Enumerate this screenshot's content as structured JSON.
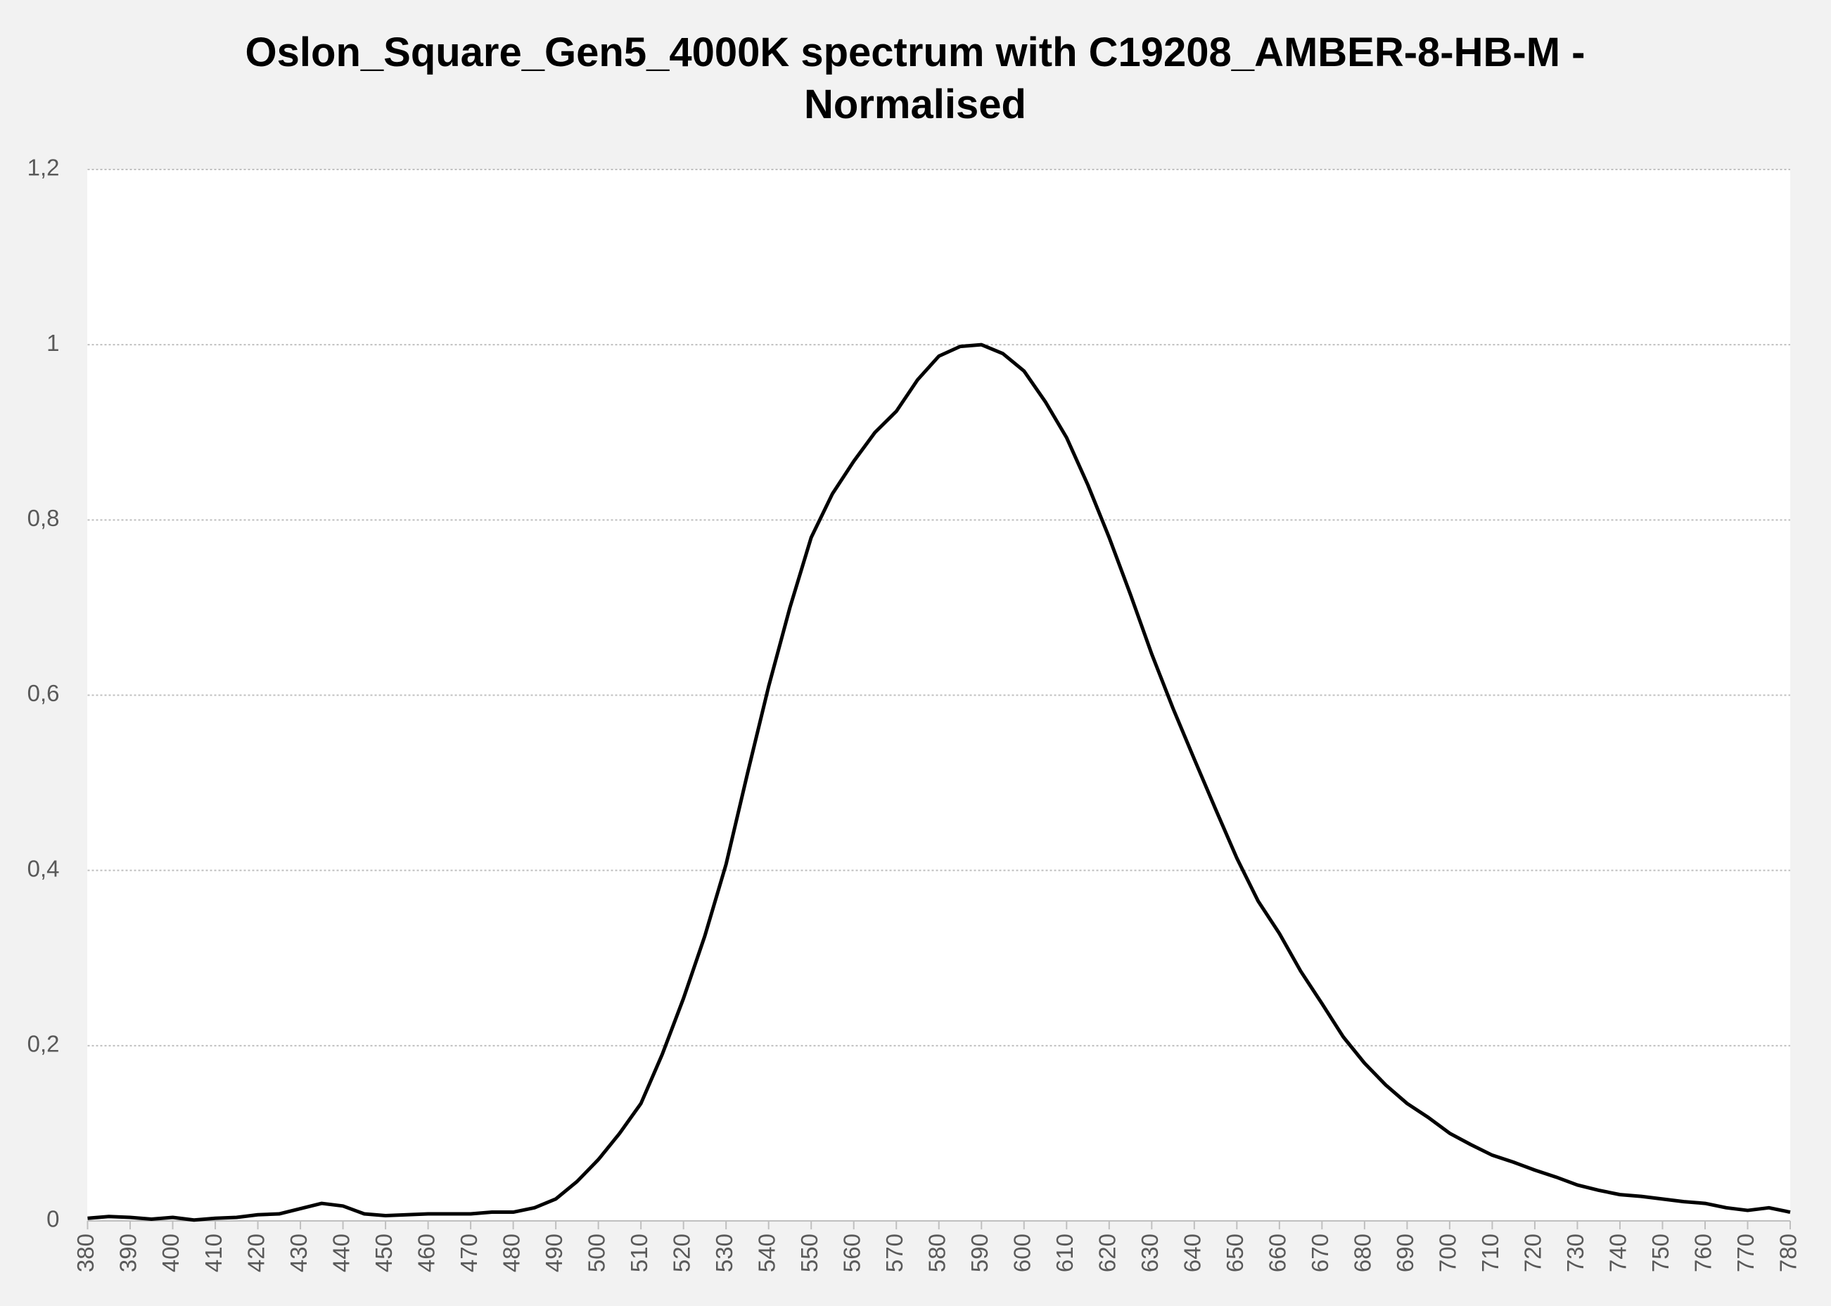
{
  "chart_data": {
    "type": "line",
    "title": "Oslon_Square_Gen5_4000K spectrum with C19208_AMBER-8-HB-M - Normalised",
    "x": [
      380,
      385,
      390,
      395,
      400,
      405,
      410,
      415,
      420,
      425,
      430,
      435,
      440,
      445,
      450,
      455,
      460,
      465,
      470,
      475,
      480,
      485,
      490,
      495,
      500,
      505,
      510,
      515,
      520,
      525,
      530,
      535,
      540,
      545,
      550,
      555,
      560,
      565,
      570,
      575,
      580,
      585,
      590,
      595,
      600,
      605,
      610,
      615,
      620,
      625,
      630,
      635,
      640,
      645,
      650,
      655,
      660,
      665,
      670,
      675,
      680,
      685,
      690,
      695,
      700,
      705,
      710,
      715,
      720,
      725,
      730,
      735,
      740,
      745,
      750,
      755,
      760,
      765,
      770,
      775,
      780
    ],
    "series": [
      {
        "color": "#000000",
        "values": [
          0.003,
          0.005,
          0.004,
          0.002,
          0.004,
          0.001,
          0.003,
          0.004,
          0.007,
          0.008,
          0.014,
          0.02,
          0.017,
          0.008,
          0.006,
          0.007,
          0.008,
          0.008,
          0.008,
          0.01,
          0.01,
          0.015,
          0.025,
          0.045,
          0.07,
          0.1,
          0.134,
          0.19,
          0.254,
          0.325,
          0.407,
          0.51,
          0.61,
          0.7,
          0.78,
          0.83,
          0.867,
          0.9,
          0.924,
          0.96,
          0.987,
          0.998,
          1,
          0.99,
          0.97,
          0.935,
          0.894,
          0.84,
          0.78,
          0.715,
          0.647,
          0.585,
          0.527,
          0.47,
          0.414,
          0.365,
          0.328,
          0.285,
          0.248,
          0.21,
          0.18,
          0.155,
          0.134,
          0.118,
          0.1,
          0.087,
          0.075,
          0.067,
          0.058,
          0.05,
          0.041,
          0.035,
          0.03,
          0.028,
          0.025,
          0.022,
          0.02,
          0.015,
          0.012,
          0.015,
          0.01
        ]
      }
    ],
    "xlim": [
      380,
      780
    ],
    "xticks": [
      380,
      390,
      400,
      410,
      420,
      430,
      440,
      450,
      460,
      470,
      480,
      490,
      500,
      510,
      520,
      530,
      540,
      550,
      560,
      570,
      580,
      590,
      600,
      610,
      620,
      630,
      640,
      650,
      660,
      670,
      680,
      690,
      700,
      710,
      720,
      730,
      740,
      750,
      760,
      770,
      780
    ],
    "ylim": [
      0,
      1.2
    ],
    "yticks": [
      0,
      {
        "value": 0.2,
        "label": "0,2"
      },
      {
        "value": 0.4,
        "label": "0,4"
      },
      {
        "value": 0.6,
        "label": "0,6"
      },
      {
        "value": 0.8,
        "label": "0,8"
      },
      1,
      {
        "value": 1.2,
        "label": "1,2"
      }
    ],
    "grid": true
  }
}
